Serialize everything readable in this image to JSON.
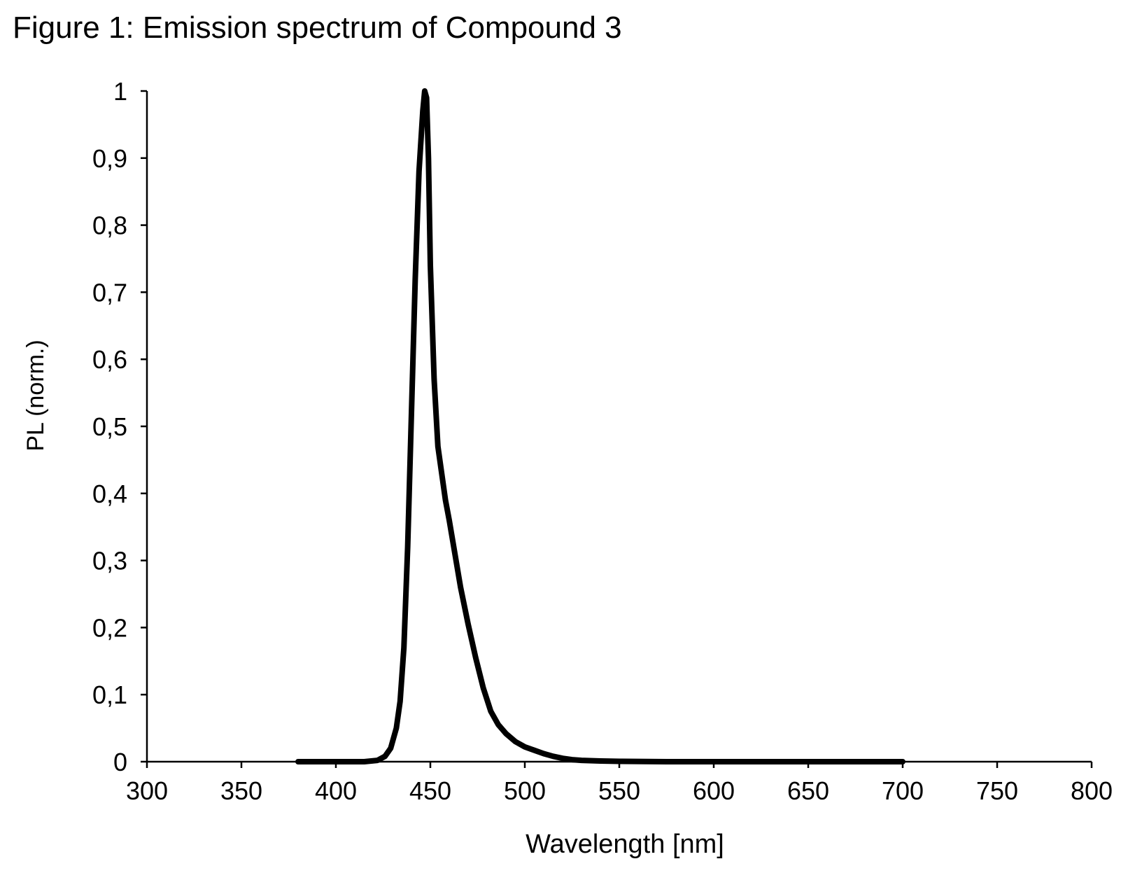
{
  "caption": "Figure 1: Emission spectrum of Compound 3",
  "colors": {
    "line": "#000000",
    "axis": "#000000",
    "background": "#ffffff"
  },
  "chart_data": {
    "type": "line",
    "title": "Figure 1: Emission spectrum of Compound 3",
    "xlabel": "Wavelength [nm]",
    "ylabel": "PL (norm.)",
    "xlim": [
      300,
      800
    ],
    "ylim": [
      0,
      1
    ],
    "x_ticks": [
      300,
      350,
      400,
      450,
      500,
      550,
      600,
      650,
      700,
      750,
      800
    ],
    "x_tick_labels": [
      "300",
      "350",
      "400",
      "450",
      "500",
      "550",
      "600",
      "650",
      "700",
      "750",
      "800"
    ],
    "y_ticks": [
      0,
      0.1,
      0.2,
      0.3,
      0.4,
      0.5,
      0.6,
      0.7,
      0.8,
      0.9,
      1
    ],
    "y_tick_labels": [
      "0",
      "0,1",
      "0,2",
      "0,3",
      "0,4",
      "0,5",
      "0,6",
      "0,7",
      "0,8",
      "0,9",
      "1"
    ],
    "grid": false,
    "legend": "none",
    "series": [
      {
        "x": [
          380,
          400,
          415,
          422,
          426,
          429,
          432,
          434,
          436,
          438,
          440,
          442,
          444,
          446,
          447,
          448,
          449,
          450,
          452,
          454,
          456,
          458,
          460,
          463,
          466,
          470,
          474,
          478,
          482,
          486,
          490,
          495,
          500,
          505,
          510,
          515,
          520,
          525,
          530,
          540,
          550,
          575,
          600,
          650,
          700
        ],
        "y": [
          0,
          0,
          0,
          0.002,
          0.008,
          0.02,
          0.05,
          0.09,
          0.17,
          0.32,
          0.52,
          0.72,
          0.88,
          0.97,
          1.0,
          0.99,
          0.9,
          0.74,
          0.57,
          0.47,
          0.43,
          0.39,
          0.36,
          0.31,
          0.26,
          0.205,
          0.155,
          0.11,
          0.075,
          0.055,
          0.042,
          0.03,
          0.022,
          0.017,
          0.012,
          0.008,
          0.005,
          0.003,
          0.002,
          0.001,
          0.0005,
          0,
          0,
          0,
          0
        ]
      }
    ]
  }
}
